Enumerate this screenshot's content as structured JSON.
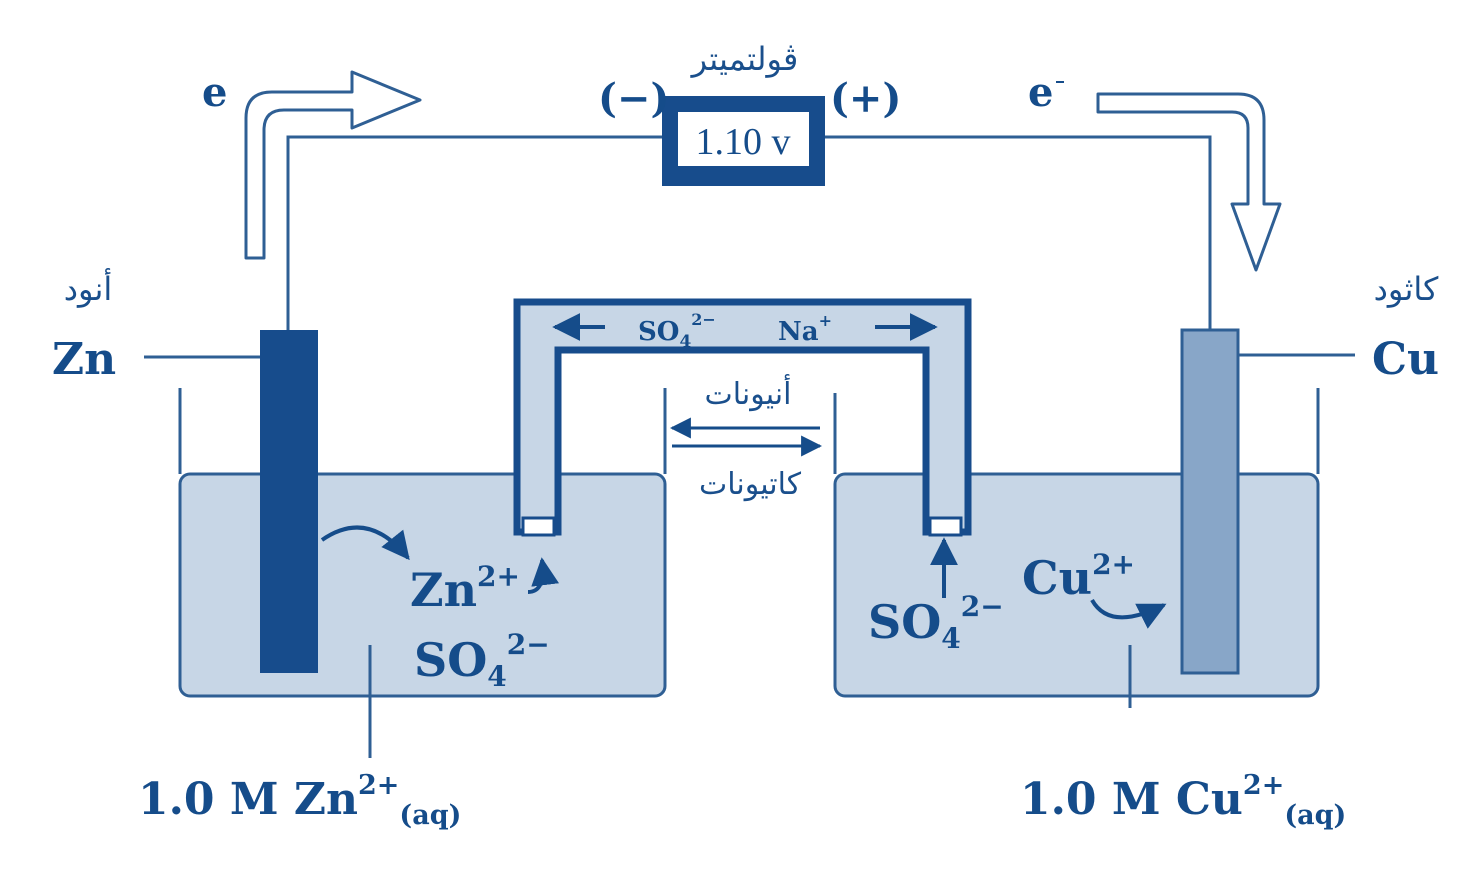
{
  "colors": {
    "primary": "#154c8a",
    "line": "#2f5f94",
    "solution": "#c7d6e6",
    "anode_fill": "#174c8c",
    "cathode_fill": "#88a6c8",
    "white": "#ffffff"
  },
  "voltmeter": {
    "label": "ڤولتميتر",
    "reading": "1.10 v",
    "minus": "(−)",
    "plus": "(+)"
  },
  "electron": {
    "left": "e",
    "right": "e"
  },
  "anode": {
    "label_ar": "أنود",
    "symbol": "Zn"
  },
  "cathode": {
    "label_ar": "كاثود",
    "symbol": "Cu"
  },
  "salt_bridge": {
    "anion": "SO",
    "anion_sub": "4",
    "anion_sup": "2−",
    "cation": "Na",
    "cation_sup": "+",
    "anions_ar": "أنيونات",
    "cations_ar": "كاتيونات"
  },
  "left_beaker": {
    "ion1": "Zn",
    "ion1_sup": "2+",
    "ion2": "SO",
    "ion2_sub": "4",
    "ion2_sup": "2−",
    "caption_prefix": "1.0 M Zn",
    "caption_sup": "2+",
    "caption_sub": "(aq)"
  },
  "right_beaker": {
    "ion1": "SO",
    "ion1_sub": "4",
    "ion1_sup": "2−",
    "ion2": "Cu",
    "ion2_sup": "2+",
    "caption_prefix": "1.0 M Cu",
    "caption_sup": "2+",
    "caption_sub": "(aq)"
  }
}
